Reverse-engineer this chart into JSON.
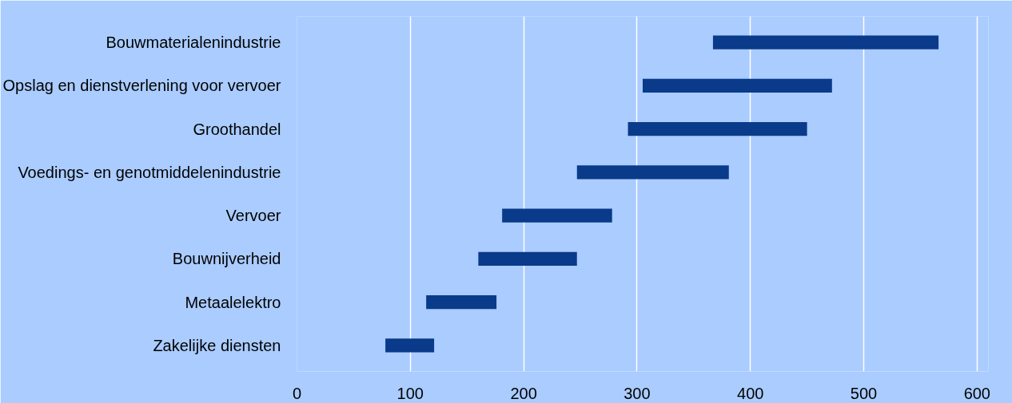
{
  "chart_data": {
    "type": "bar",
    "orientation": "horizontal",
    "categories": [
      "Bouwmaterialenindustrie",
      "Opslag en dienstverlening voor vervoer",
      "Groothandel",
      "Voedings- en genotmiddelenindustrie",
      "Vervoer",
      "Bouwnijverheid",
      "Metaalelektro",
      "Zakelijke diensten"
    ],
    "base": [
      367,
      305,
      292,
      247,
      181,
      160,
      114,
      78
    ],
    "values": [
      199,
      167,
      158,
      134,
      97,
      87,
      62,
      43
    ],
    "color": "#0a3a8a",
    "xlim": [
      0,
      610
    ],
    "xticks": [
      0,
      100,
      200,
      300,
      400,
      500,
      600
    ],
    "grid": "x"
  }
}
